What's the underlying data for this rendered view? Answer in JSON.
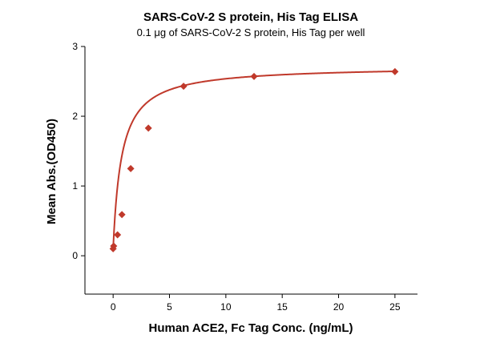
{
  "chart_data": {
    "type": "scatter",
    "title": "SARS-CoV-2 S protein, His Tag ELISA",
    "subtitle": "0.1 μg of SARS-CoV-2 S protein, His Tag per well",
    "xlabel": "Human ACE2, Fc Tag Conc. (ng/mL)",
    "ylabel": "Mean Abs.(OD450)",
    "xlim": [
      -2.5,
      27
    ],
    "ylim": [
      -0.55,
      3
    ],
    "xticks": [
      "0",
      "5",
      "10",
      "15",
      "20",
      "25"
    ],
    "xtick_values": [
      0,
      5,
      10,
      15,
      20,
      25
    ],
    "yticks": [
      "0",
      "1",
      "2",
      "3"
    ],
    "ytick_values": [
      0,
      1,
      2,
      3
    ],
    "grid": false,
    "series": [
      {
        "points": [
          {
            "x": 0.0,
            "y": 0.1
          },
          {
            "x": 0.05,
            "y": 0.14
          },
          {
            "x": 0.39,
            "y": 0.3
          },
          {
            "x": 0.78,
            "y": 0.59
          },
          {
            "x": 1.56,
            "y": 1.25
          },
          {
            "x": 3.13,
            "y": 1.83
          },
          {
            "x": 6.25,
            "y": 2.43
          },
          {
            "x": 12.5,
            "y": 2.57
          },
          {
            "x": 25.0,
            "y": 2.64
          }
        ],
        "fit": {
          "model": "hyperbolic",
          "ymax": 2.72,
          "kd": 0.75
        },
        "color": "#c0392b"
      }
    ]
  }
}
